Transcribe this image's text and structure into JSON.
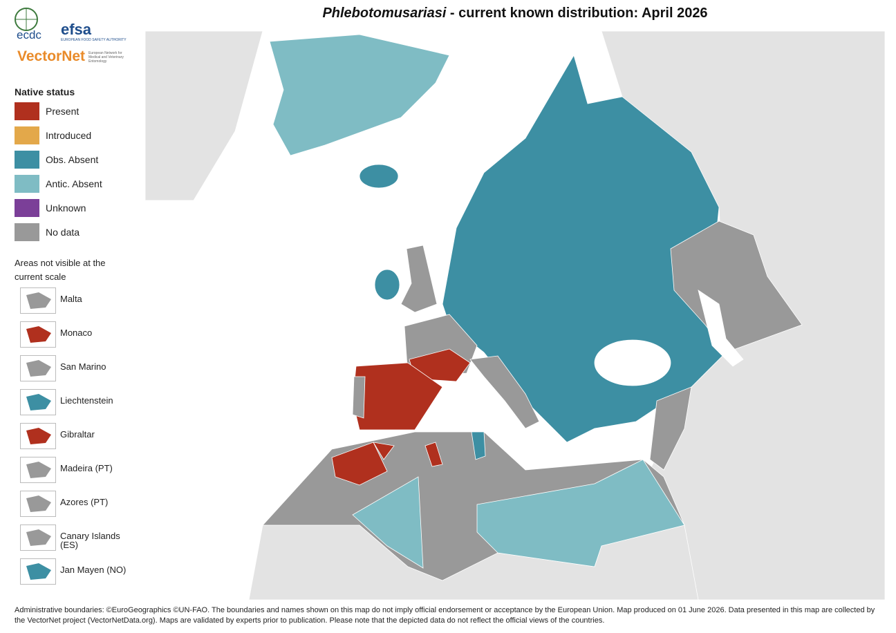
{
  "header": {
    "title_species": "Phlebotomusariasi",
    "title_rest": " - current known distribution: April 2026"
  },
  "logos": {
    "ecdc": "ecdc",
    "efsa": "efsa",
    "efsa_sub": "EUROPEAN FOOD SAFETY AUTHORITY",
    "vectornet": "VectorNet",
    "vectornet_sub": "European Network for Medical and Veterinary Entomology"
  },
  "legend": {
    "title": "Native status",
    "items": [
      {
        "label": "Present",
        "color": "#b0301e"
      },
      {
        "label": "Introduced",
        "color": "#e3a84a"
      },
      {
        "label": "Obs. Absent",
        "color": "#3d8fa3"
      },
      {
        "label": "Antic. Absent",
        "color": "#7fbcc4"
      },
      {
        "label": "Unknown",
        "color": "#7b3f98"
      },
      {
        "label": "No data",
        "color": "#999999"
      }
    ]
  },
  "insets": {
    "title": "Areas not visible at the current scale",
    "items": [
      {
        "label": "Malta",
        "color": "#999999"
      },
      {
        "label": "Monaco",
        "color": "#b0301e"
      },
      {
        "label": "San Marino",
        "color": "#999999"
      },
      {
        "label": "Liechtenstein",
        "color": "#3d8fa3"
      },
      {
        "label": "Gibraltar",
        "color": "#b0301e"
      },
      {
        "label": "Madeira (PT)",
        "color": "#999999"
      },
      {
        "label": "Azores (PT)",
        "color": "#999999"
      },
      {
        "label": "Canary Islands (ES)",
        "color": "#999999"
      },
      {
        "label": "Jan Mayen (NO)",
        "color": "#3d8fa3"
      }
    ]
  },
  "footer": "Administrative boundaries: ©EuroGeographics ©UN-FAO. The boundaries and names shown on this map do not imply official endorsement or acceptance by the European Union. Map produced on 01 June 2026. Data presented in this map are collected by the VectorNet project (VectorNetData.org). Maps are validated by experts prior to publication. Please note that the depicted data do not reflect the official views of the countries."
}
